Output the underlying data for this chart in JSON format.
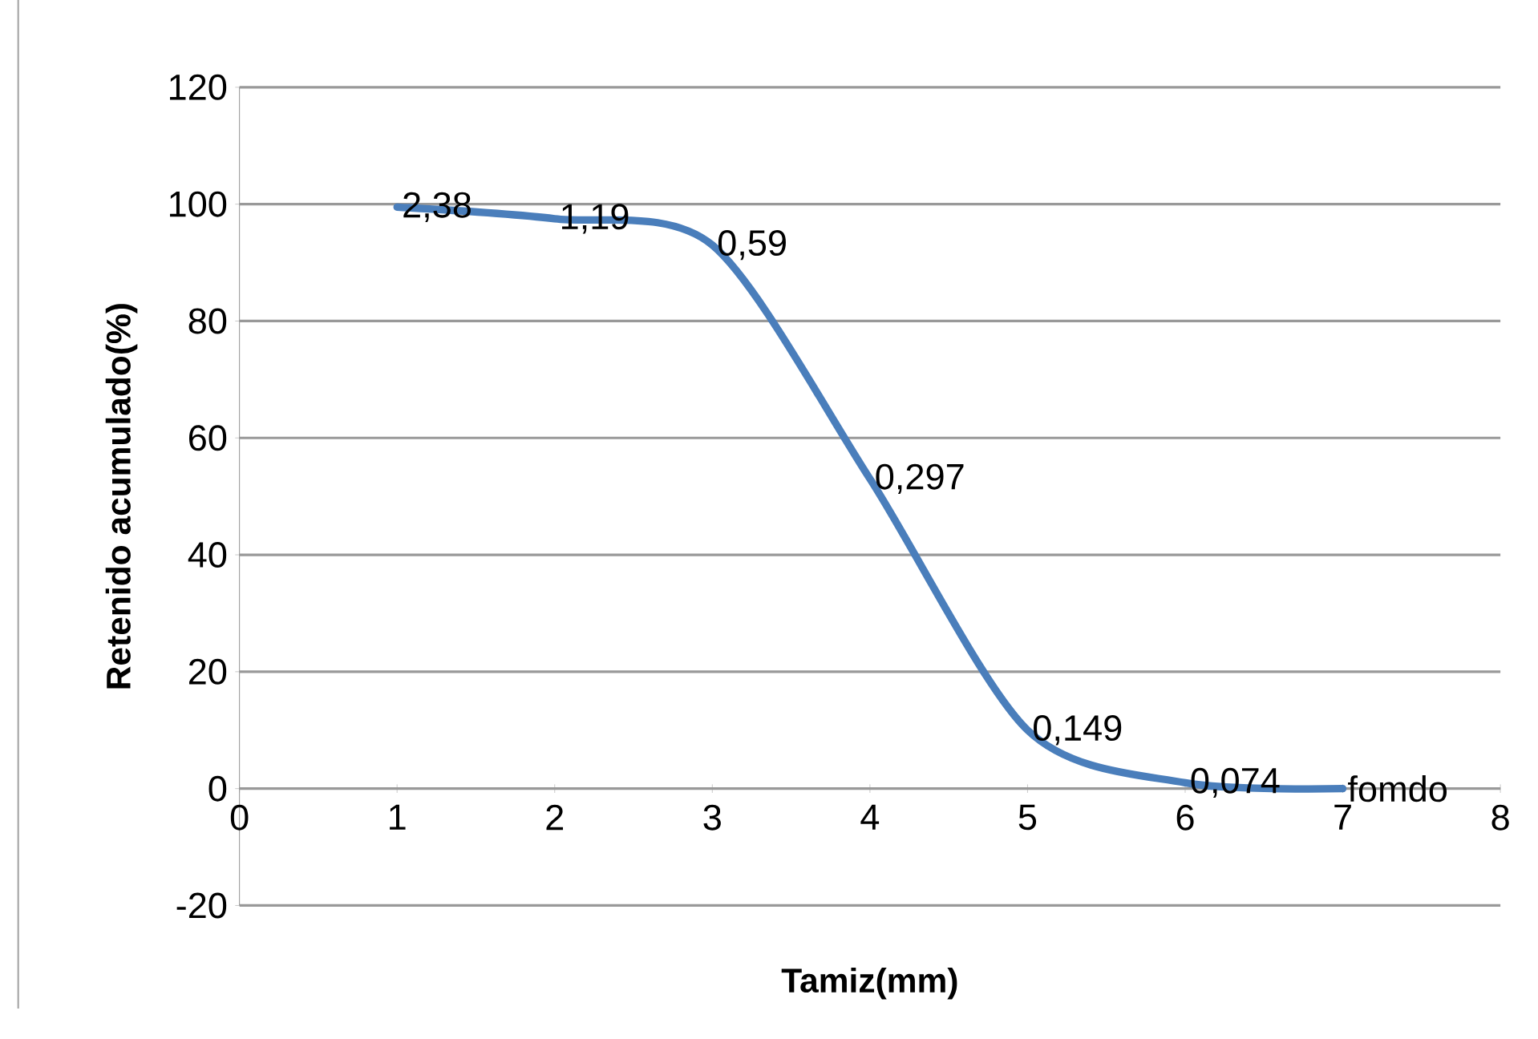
{
  "chart_data": {
    "type": "line",
    "xlabel": "Tamiz(mm)",
    "ylabel": "Retenido acumulado(%)",
    "x": [
      1,
      2,
      3,
      4,
      5,
      6,
      7
    ],
    "series": [
      {
        "color": "#4a7ebb",
        "values": [
          99.5,
          97.5,
          93,
          53,
          10,
          1,
          0
        ]
      }
    ],
    "xlim": [
      0,
      8
    ],
    "xticks": [
      0,
      1,
      2,
      3,
      4,
      5,
      6,
      7,
      8
    ],
    "ylim": [
      -20,
      120
    ],
    "yticks": [
      -20,
      0,
      20,
      40,
      60,
      80,
      100,
      120
    ],
    "grid": "y",
    "marker": "none",
    "line_style": "solid",
    "annotations": [
      {
        "text": "2,38",
        "x": 1,
        "y": 99.5
      },
      {
        "text": "1,19",
        "x": 2,
        "y": 97.5
      },
      {
        "text": "0,59",
        "x": 3,
        "y": 93
      },
      {
        "text": "0,297",
        "x": 4,
        "y": 53
      },
      {
        "text": "0,149",
        "x": 5,
        "y": 10
      },
      {
        "text": "0,074",
        "x": 6,
        "y": 1
      },
      {
        "text": "fomdo",
        "x": 7,
        "y": 0
      }
    ]
  }
}
